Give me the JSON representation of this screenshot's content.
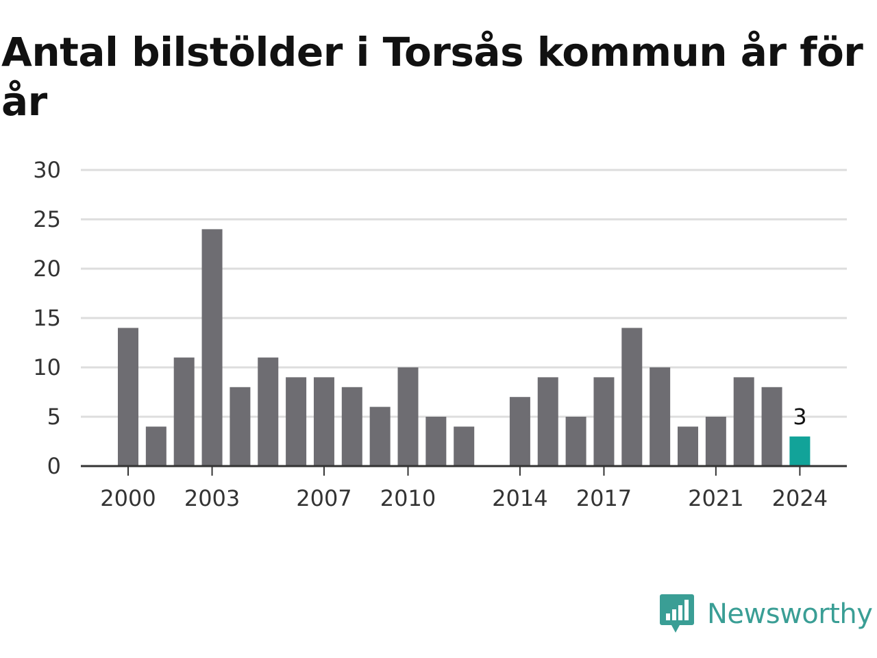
{
  "chart_data": {
    "type": "bar",
    "title": "Antal bilstölder i Torsås kommun år för år",
    "categories": [
      "2000",
      "2001",
      "2002",
      "2003",
      "2004",
      "2005",
      "2006",
      "2007",
      "2008",
      "2009",
      "2010",
      "2011",
      "2012",
      "2013",
      "2014",
      "2015",
      "2016",
      "2017",
      "2018",
      "2019",
      "2020",
      "2021",
      "2022",
      "2023",
      "2024"
    ],
    "values": [
      14,
      4,
      11,
      24,
      8,
      11,
      9,
      9,
      8,
      6,
      10,
      5,
      4,
      0,
      7,
      9,
      5,
      9,
      14,
      10,
      4,
      5,
      9,
      8,
      3
    ],
    "x_tick_labels": [
      "2000",
      "2003",
      "2007",
      "2010",
      "2014",
      "2017",
      "2021",
      "2024"
    ],
    "y_ticks": [
      0,
      5,
      10,
      15,
      20,
      25,
      30
    ],
    "ylim": [
      0,
      30
    ],
    "xlabel": "",
    "ylabel": "",
    "grid": true,
    "highlight": {
      "category": "2024",
      "label": "3"
    },
    "colors": {
      "bar": "#6e6d72",
      "highlight": "#12a399",
      "grid": "#dddddd",
      "axis": "#333333"
    }
  },
  "brand": {
    "name": "Newsworthy",
    "icon": "newsworthy-logo-icon",
    "color": "#3a9e95"
  }
}
